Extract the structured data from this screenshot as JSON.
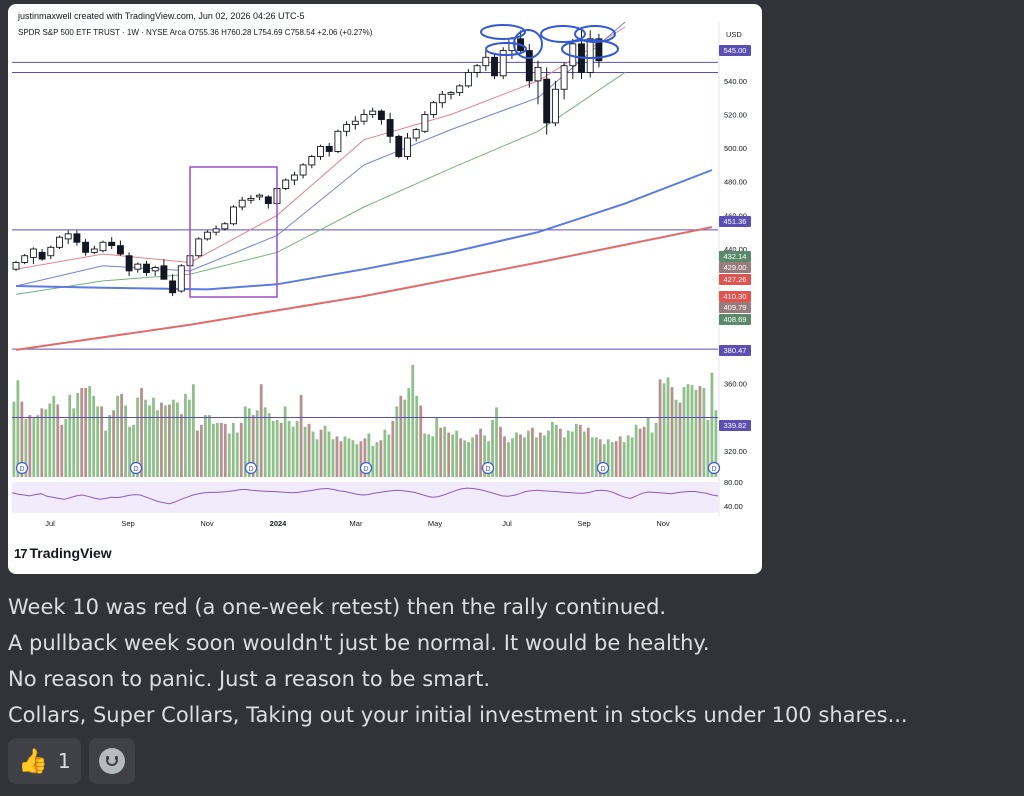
{
  "chart_card": {
    "credit": "justinmaxwell created with TradingView.com, Jun 02, 2026 04:26 UTC-5",
    "symbol_line": "SPDR S&P 500 ETF TRUST · 1W · NYSE Arca  O755.36  H760.28  L754.69  C758.54  +2.06 (+0.27%)",
    "currency": "USD",
    "brand": "TradingView",
    "logo_glyph": "17"
  },
  "chart_data": {
    "type": "candlestick",
    "xlabel": "",
    "ylabel": "",
    "ylim": [
      305,
      575
    ],
    "x_ticks": [
      "Jul",
      "Sep",
      "Nov",
      "2024",
      "Mar",
      "May",
      "Jul",
      "Sep",
      "Nov"
    ],
    "y_ticks": [
      "540.00",
      "520.00",
      "500.00",
      "480.00",
      "460.00",
      "440.00",
      "360.00",
      "320.00"
    ],
    "horizontal_lines": [
      {
        "value": 551,
        "color": "#5b4fb6"
      },
      {
        "value": 545,
        "color": "#5b4fb6"
      },
      {
        "value": 451.36,
        "color": "#5b4fb6"
      },
      {
        "value": 380.47,
        "color": "#5b4fb6"
      },
      {
        "value": 339.82,
        "color": "#5b4fb6"
      }
    ],
    "price_badges": [
      {
        "label": "545.00",
        "value": 545.0,
        "color": "#5b4fb6"
      },
      {
        "label": "451.36",
        "value": 451.36,
        "color": "#5b4fb6"
      },
      {
        "label": "432.14",
        "value": 432.14,
        "color": "#5b8a6b"
      },
      {
        "label": "429.00",
        "value": 429.0,
        "color": "#9a7b7b"
      },
      {
        "label": "427.26",
        "value": 427.26,
        "color": "#e0534f"
      },
      {
        "label": "410.30",
        "value": 410.3,
        "color": "#e0534f"
      },
      {
        "label": "409.79",
        "value": 409.79,
        "color": "#9a7b7b"
      },
      {
        "label": "408.69",
        "value": 408.69,
        "color": "#5b8a6b"
      },
      {
        "label": "380.47",
        "value": 380.47,
        "color": "#5b4fb6"
      },
      {
        "label": "339.82",
        "value": 339.82,
        "color": "#5b4fb6"
      }
    ],
    "candles": [
      [
        428,
        433,
        427,
        432
      ],
      [
        432,
        437,
        431,
        436
      ],
      [
        435,
        441,
        431,
        440
      ],
      [
        438,
        440,
        433,
        434
      ],
      [
        436,
        442,
        434,
        441
      ],
      [
        441,
        448,
        440,
        447
      ],
      [
        446,
        451,
        443,
        449
      ],
      [
        449,
        451,
        442,
        444
      ],
      [
        444,
        446,
        436,
        438
      ],
      [
        438,
        442,
        437,
        440
      ],
      [
        439,
        445,
        438,
        444
      ],
      [
        444,
        447,
        440,
        442
      ],
      [
        442,
        445,
        436,
        437
      ],
      [
        436,
        438,
        424,
        427
      ],
      [
        428,
        432,
        426,
        431
      ],
      [
        431,
        433,
        424,
        426
      ],
      [
        427,
        430,
        424,
        429
      ],
      [
        430,
        434,
        422,
        422
      ],
      [
        421,
        425,
        412,
        414
      ],
      [
        415,
        431,
        414,
        430
      ],
      [
        430,
        437,
        429,
        436
      ],
      [
        436,
        447,
        435,
        446
      ],
      [
        446,
        451,
        445,
        450
      ],
      [
        450,
        454,
        448,
        452
      ],
      [
        452,
        456,
        451,
        455
      ],
      [
        455,
        466,
        454,
        465
      ],
      [
        465,
        471,
        463,
        469
      ],
      [
        469,
        472,
        467,
        470
      ],
      [
        471,
        473,
        469,
        472
      ],
      [
        471,
        472,
        464,
        467
      ],
      [
        467,
        477,
        466,
        476
      ],
      [
        476,
        482,
        475,
        481
      ],
      [
        481,
        486,
        478,
        484
      ],
      [
        484,
        491,
        482,
        490
      ],
      [
        490,
        496,
        488,
        495
      ],
      [
        495,
        502,
        493,
        501
      ],
      [
        501,
        503,
        495,
        498
      ],
      [
        498,
        511,
        497,
        510
      ],
      [
        510,
        516,
        507,
        514
      ],
      [
        514,
        519,
        511,
        516
      ],
      [
        516,
        523,
        514,
        520
      ],
      [
        520,
        524,
        518,
        522
      ],
      [
        522,
        523,
        514,
        517
      ],
      [
        517,
        521,
        503,
        507
      ],
      [
        507,
        508,
        494,
        495
      ],
      [
        495,
        509,
        493,
        506
      ],
      [
        506,
        512,
        504,
        511
      ],
      [
        510,
        522,
        509,
        520
      ],
      [
        520,
        528,
        518,
        527
      ],
      [
        527,
        534,
        524,
        532
      ],
      [
        532,
        534,
        529,
        533
      ],
      [
        533,
        538,
        531,
        537
      ],
      [
        537,
        547,
        536,
        545
      ],
      [
        545,
        550,
        542,
        549
      ],
      [
        549,
        558,
        546,
        554
      ],
      [
        554,
        556,
        541,
        543
      ],
      [
        543,
        560,
        541,
        558
      ],
      [
        558,
        566,
        553,
        565
      ],
      [
        565,
        570,
        556,
        558
      ],
      [
        558,
        562,
        536,
        540
      ],
      [
        540,
        552,
        526,
        548
      ],
      [
        541,
        548,
        508,
        515
      ],
      [
        515,
        540,
        513,
        535
      ],
      [
        535,
        551,
        529,
        549
      ],
      [
        549,
        565,
        541,
        562
      ],
      [
        562,
        570,
        541,
        545
      ],
      [
        545,
        570,
        542,
        565
      ],
      [
        565,
        568,
        548,
        552
      ]
    ],
    "moving_averages": [
      {
        "color": "#e8838a",
        "values": [
          [
            0,
            428
          ],
          [
            10,
            437
          ],
          [
            20,
            432
          ],
          [
            30,
            460
          ],
          [
            40,
            505
          ],
          [
            50,
            520
          ],
          [
            60,
            540
          ],
          [
            70,
            572
          ]
        ]
      },
      {
        "color": "#6f83d6",
        "values": [
          [
            0,
            418
          ],
          [
            10,
            430
          ],
          [
            20,
            427
          ],
          [
            30,
            448
          ],
          [
            40,
            490
          ],
          [
            50,
            511
          ],
          [
            60,
            530
          ],
          [
            70,
            575
          ]
        ]
      },
      {
        "color": "#79b27a",
        "values": [
          [
            0,
            413
          ],
          [
            10,
            421
          ],
          [
            20,
            425
          ],
          [
            30,
            438
          ],
          [
            40,
            465
          ],
          [
            50,
            488
          ],
          [
            60,
            510
          ],
          [
            70,
            545
          ]
        ]
      },
      {
        "color": "#5b7be0",
        "values": [
          [
            0,
            418
          ],
          [
            10,
            417
          ],
          [
            22,
            416
          ],
          [
            30,
            419
          ],
          [
            40,
            428
          ],
          [
            50,
            438
          ],
          [
            60,
            450
          ],
          [
            70,
            467
          ],
          [
            80,
            487
          ]
        ]
      },
      {
        "color": "#e36b6b",
        "values": [
          [
            0,
            380
          ],
          [
            20,
            395
          ],
          [
            40,
            412
          ],
          [
            60,
            432
          ],
          [
            80,
            453
          ]
        ]
      }
    ],
    "volume": [
      78,
      100,
      78,
      60,
      64,
      62,
      64,
      71,
      70,
      76,
      84,
      75,
      54,
      60,
      85,
      71,
      87,
      92,
      92,
      94,
      84,
      73,
      73,
      48,
      64,
      69,
      84,
      86,
      74,
      52,
      54,
      82,
      92,
      80,
      74,
      82,
      69,
      77,
      74,
      75,
      80,
      77,
      65,
      86,
      80,
      96,
      48,
      54,
      64,
      64,
      55,
      56,
      56,
      55,
      45,
      56,
      46,
      56,
      73,
      71,
      64,
      69,
      96,
      72,
      66,
      58,
      59,
      56,
      73,
      58,
      52,
      58,
      85,
      52,
      55,
      47,
      39,
      49,
      53,
      47,
      39,
      42,
      37,
      42,
      40,
      38,
      34,
      37,
      40,
      45,
      32,
      36,
      38,
      49,
      44,
      58,
      73,
      84,
      80,
      92,
      116,
      84,
      74,
      45,
      44,
      42,
      61,
      51,
      52,
      46,
      44,
      48,
      40,
      38,
      36,
      41,
      44,
      50,
      43,
      37,
      59,
      72,
      52,
      42,
      36,
      40,
      46,
      44,
      41,
      48,
      51,
      41,
      46,
      43,
      48,
      57,
      54,
      50,
      41,
      48,
      47,
      55,
      54,
      47,
      51,
      41,
      41,
      39,
      34,
      39,
      36,
      37,
      42,
      36,
      43,
      41,
      54,
      50,
      52,
      62,
      46,
      56,
      101,
      97,
      103,
      93,
      80,
      77,
      93,
      96,
      95,
      90,
      94,
      92,
      59,
      108,
      69
    ],
    "rsi": [
      65,
      62,
      60,
      58,
      61,
      63,
      57,
      55,
      52,
      50,
      54,
      58,
      60,
      57,
      53,
      50,
      52,
      55,
      54,
      56,
      59,
      61,
      60,
      55,
      50,
      45,
      42,
      40,
      44,
      50,
      55,
      60,
      63,
      65,
      66,
      66,
      67,
      68,
      70,
      72,
      73,
      71,
      70,
      69,
      68,
      68,
      67,
      66,
      65,
      66,
      68,
      70,
      72,
      74,
      75,
      73,
      70,
      68,
      65,
      62,
      60,
      61,
      64,
      66,
      68,
      70,
      71,
      70,
      68,
      66,
      62,
      58,
      55,
      56,
      60,
      65,
      70,
      74,
      76,
      75,
      73,
      70,
      66,
      62,
      58,
      57,
      59,
      63,
      68,
      70,
      71,
      70,
      69,
      68,
      67,
      66,
      65,
      64,
      64,
      66,
      70,
      71,
      70,
      66,
      60,
      55,
      52,
      58,
      64,
      67,
      66,
      65,
      64,
      63,
      65,
      67,
      68,
      68,
      66,
      64,
      60,
      58
    ]
  },
  "message": {
    "lines": [
      "Week 10 was red (a one-week retest) then the rally continued.",
      "A pullback week soon wouldn't just be normal. It would be healthy.",
      "No reason to panic. Just a reason to be smart.",
      "Collars, Super Collars, Taking out your initial investment in stocks under 100 shares..."
    ]
  },
  "reactions": [
    {
      "emoji": "👍",
      "count": "1"
    }
  ],
  "icons": {
    "thumbs_up": "thumbs-up-icon",
    "add_reaction": "add-reaction-icon"
  }
}
